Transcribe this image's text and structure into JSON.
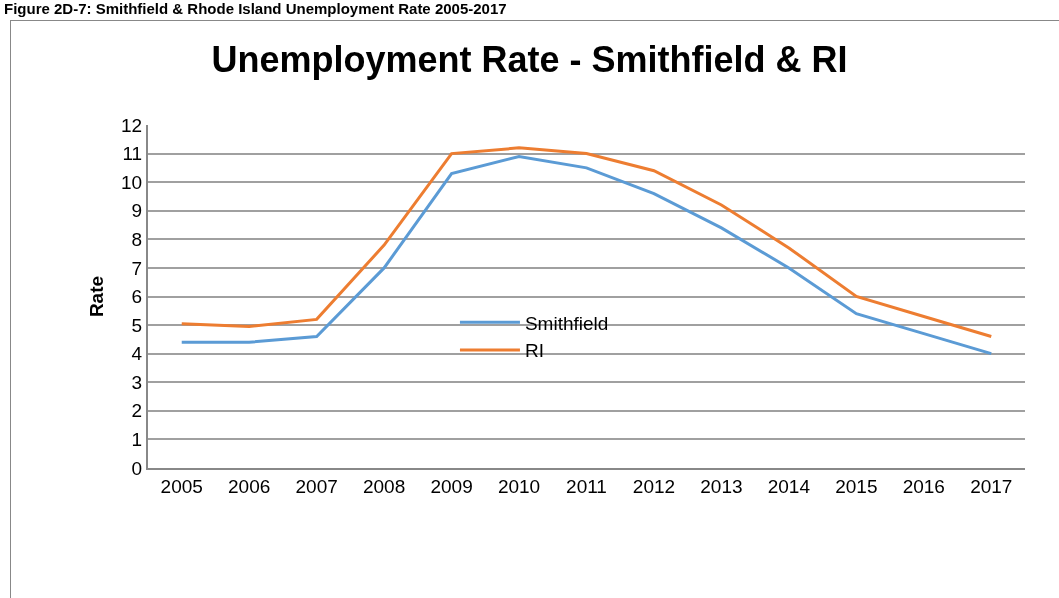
{
  "chart_data": {
    "type": "line",
    "title": "Unemployment Rate - Smithfield & RI",
    "annotations": [
      "Figure 2D-7: Smithfield & Rhode Island Unemployment Rate 2005-2017"
    ],
    "ylabel": "Rate",
    "categories": [
      "2005",
      "2006",
      "2007",
      "2008",
      "2009",
      "2010",
      "2011",
      "2012",
      "2013",
      "2014",
      "2015",
      "2016",
      "2017"
    ],
    "series": [
      {
        "name": "Smithfield",
        "color": "#5b9bd5",
        "values": [
          4.4,
          4.4,
          4.6,
          7.0,
          10.3,
          10.9,
          10.5,
          9.6,
          8.4,
          7.0,
          5.4,
          4.7,
          4.0
        ]
      },
      {
        "name": "RI",
        "color": "#ed7d31",
        "values": [
          5.05,
          4.95,
          5.2,
          7.8,
          11.0,
          11.2,
          11.0,
          10.4,
          9.2,
          7.7,
          6.0,
          5.3,
          4.6
        ]
      }
    ],
    "ylim": [
      0,
      12
    ],
    "yticks": [
      0,
      1,
      2,
      3,
      4,
      5,
      6,
      7,
      8,
      9,
      10,
      11,
      12
    ],
    "grid": "y",
    "legend": "center",
    "marker": "none",
    "line_style": "solid"
  }
}
